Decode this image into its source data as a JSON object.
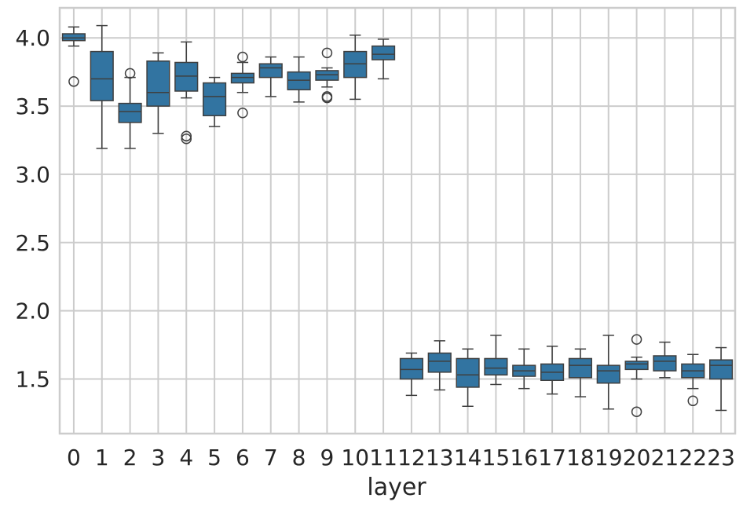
{
  "chart_data": {
    "type": "boxplot",
    "xlabel": "layer",
    "ylabel": "",
    "ylim": [
      1.1,
      4.22
    ],
    "yticks": [
      1.5,
      2.0,
      2.5,
      3.0,
      3.5,
      4.0
    ],
    "ytick_labels": [
      "1.5",
      "2.0",
      "2.5",
      "3.0",
      "3.5",
      "4.0"
    ],
    "categories": [
      "0",
      "1",
      "2",
      "3",
      "4",
      "5",
      "6",
      "7",
      "8",
      "9",
      "10",
      "11",
      "12",
      "13",
      "14",
      "15",
      "16",
      "17",
      "18",
      "19",
      "20",
      "21",
      "22",
      "23"
    ],
    "grid": true,
    "box_color": "#3274a1",
    "boxes": [
      {
        "layer": "0",
        "whislo": 3.94,
        "q1": 3.98,
        "med": 4.0,
        "q3": 4.03,
        "whishi": 4.08,
        "fliers": [
          3.68
        ]
      },
      {
        "layer": "1",
        "whislo": 3.19,
        "q1": 3.54,
        "med": 3.7,
        "q3": 3.9,
        "whishi": 4.09,
        "fliers": []
      },
      {
        "layer": "2",
        "whislo": 3.19,
        "q1": 3.38,
        "med": 3.46,
        "q3": 3.52,
        "whishi": 3.71,
        "fliers": [
          3.74
        ]
      },
      {
        "layer": "3",
        "whislo": 3.3,
        "q1": 3.5,
        "med": 3.6,
        "q3": 3.83,
        "whishi": 3.89,
        "fliers": []
      },
      {
        "layer": "4",
        "whislo": 3.56,
        "q1": 3.61,
        "med": 3.72,
        "q3": 3.82,
        "whishi": 3.97,
        "fliers": [
          3.28,
          3.26
        ]
      },
      {
        "layer": "5",
        "whislo": 3.35,
        "q1": 3.43,
        "med": 3.57,
        "q3": 3.67,
        "whishi": 3.71,
        "fliers": []
      },
      {
        "layer": "6",
        "whislo": 3.6,
        "q1": 3.67,
        "med": 3.71,
        "q3": 3.74,
        "whishi": 3.82,
        "fliers": [
          3.86,
          3.45
        ]
      },
      {
        "layer": "7",
        "whislo": 3.57,
        "q1": 3.71,
        "med": 3.78,
        "q3": 3.81,
        "whishi": 3.86,
        "fliers": []
      },
      {
        "layer": "8",
        "whislo": 3.53,
        "q1": 3.62,
        "med": 3.69,
        "q3": 3.75,
        "whishi": 3.86,
        "fliers": []
      },
      {
        "layer": "9",
        "whislo": 3.64,
        "q1": 3.69,
        "med": 3.73,
        "q3": 3.76,
        "whishi": 3.78,
        "fliers": [
          3.89,
          3.57,
          3.56
        ]
      },
      {
        "layer": "10",
        "whislo": 3.55,
        "q1": 3.71,
        "med": 3.81,
        "q3": 3.9,
        "whishi": 4.02,
        "fliers": []
      },
      {
        "layer": "11",
        "whislo": 3.7,
        "q1": 3.84,
        "med": 3.88,
        "q3": 3.94,
        "whishi": 3.99,
        "fliers": []
      },
      {
        "layer": "12",
        "whislo": 1.38,
        "q1": 1.5,
        "med": 1.57,
        "q3": 1.65,
        "whishi": 1.69,
        "fliers": []
      },
      {
        "layer": "13",
        "whislo": 1.42,
        "q1": 1.55,
        "med": 1.63,
        "q3": 1.69,
        "whishi": 1.78,
        "fliers": []
      },
      {
        "layer": "14",
        "whislo": 1.3,
        "q1": 1.44,
        "med": 1.53,
        "q3": 1.65,
        "whishi": 1.72,
        "fliers": []
      },
      {
        "layer": "15",
        "whislo": 1.46,
        "q1": 1.53,
        "med": 1.58,
        "q3": 1.65,
        "whishi": 1.82,
        "fliers": []
      },
      {
        "layer": "16",
        "whislo": 1.43,
        "q1": 1.52,
        "med": 1.56,
        "q3": 1.6,
        "whishi": 1.72,
        "fliers": []
      },
      {
        "layer": "17",
        "whislo": 1.39,
        "q1": 1.49,
        "med": 1.55,
        "q3": 1.61,
        "whishi": 1.74,
        "fliers": []
      },
      {
        "layer": "18",
        "whislo": 1.37,
        "q1": 1.51,
        "med": 1.6,
        "q3": 1.65,
        "whishi": 1.72,
        "fliers": []
      },
      {
        "layer": "19",
        "whislo": 1.28,
        "q1": 1.47,
        "med": 1.56,
        "q3": 1.6,
        "whishi": 1.82,
        "fliers": []
      },
      {
        "layer": "20",
        "whislo": 1.5,
        "q1": 1.57,
        "med": 1.61,
        "q3": 1.63,
        "whishi": 1.66,
        "fliers": [
          1.79,
          1.26
        ]
      },
      {
        "layer": "21",
        "whislo": 1.51,
        "q1": 1.56,
        "med": 1.63,
        "q3": 1.67,
        "whishi": 1.77,
        "fliers": []
      },
      {
        "layer": "22",
        "whislo": 1.43,
        "q1": 1.51,
        "med": 1.56,
        "q3": 1.61,
        "whishi": 1.68,
        "fliers": [
          1.34
        ]
      },
      {
        "layer": "23",
        "whislo": 1.27,
        "q1": 1.5,
        "med": 1.6,
        "q3": 1.64,
        "whishi": 1.73,
        "fliers": []
      }
    ]
  }
}
